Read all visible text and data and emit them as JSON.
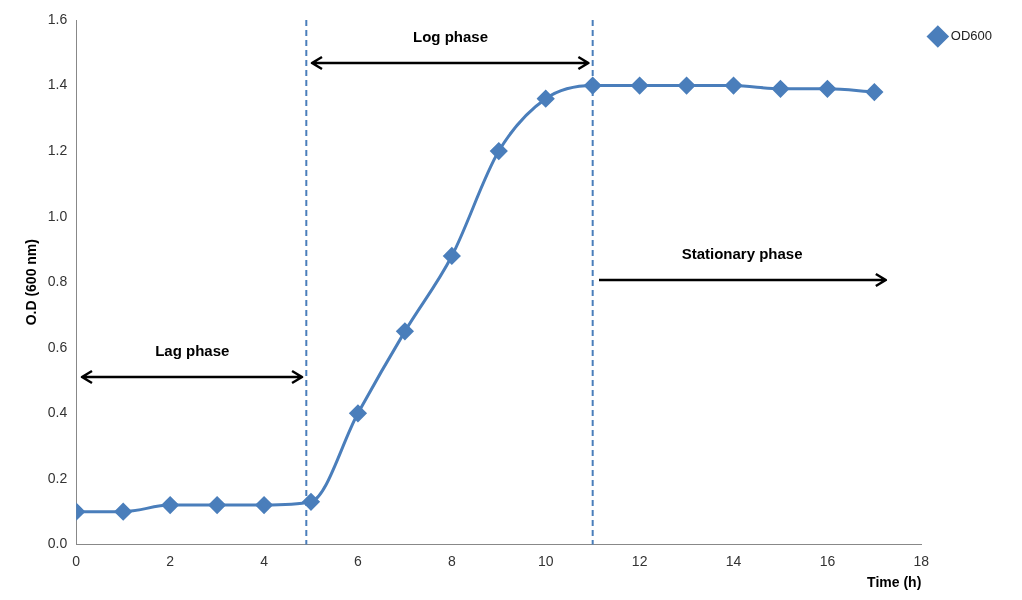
{
  "chart_data": {
    "type": "line",
    "xlabel": "Time (h)",
    "ylabel": "O.D (600 nm)",
    "x": [
      0,
      1,
      2,
      3,
      4,
      5,
      6,
      7,
      8,
      9,
      10,
      11,
      12,
      13,
      14,
      15,
      16,
      17
    ],
    "series": [
      {
        "name": "OD600",
        "color": "#4a7ebb",
        "values": [
          0.1,
          0.1,
          0.12,
          0.12,
          0.12,
          0.13,
          0.4,
          0.65,
          0.88,
          1.2,
          1.36,
          1.4,
          1.4,
          1.4,
          1.4,
          1.39,
          1.39,
          1.38
        ]
      }
    ],
    "xlim": [
      0,
      18
    ],
    "xticks": [
      0,
      2,
      4,
      6,
      8,
      10,
      12,
      14,
      16,
      18
    ],
    "ylim": [
      0,
      1.6
    ],
    "yticks": [
      {
        "value": 0,
        "label": "0.0"
      },
      0.2,
      0.4,
      0.6,
      0.8,
      {
        "value": 1,
        "label": "1.0"
      },
      1.2,
      1.4,
      1.6
    ],
    "ref_lines": [
      {
        "axis": "x",
        "value": 4.9,
        "color": "#4a7ebb",
        "line_style": "dashed"
      },
      {
        "axis": "x",
        "value": 11,
        "color": "#4a7ebb",
        "line_style": "dashed"
      }
    ],
    "annotations": [
      "Lag phase",
      "Log phase",
      "Stationary phase"
    ],
    "grid": false,
    "legend": "top right",
    "marker": "diamond",
    "line_style": "solid"
  }
}
